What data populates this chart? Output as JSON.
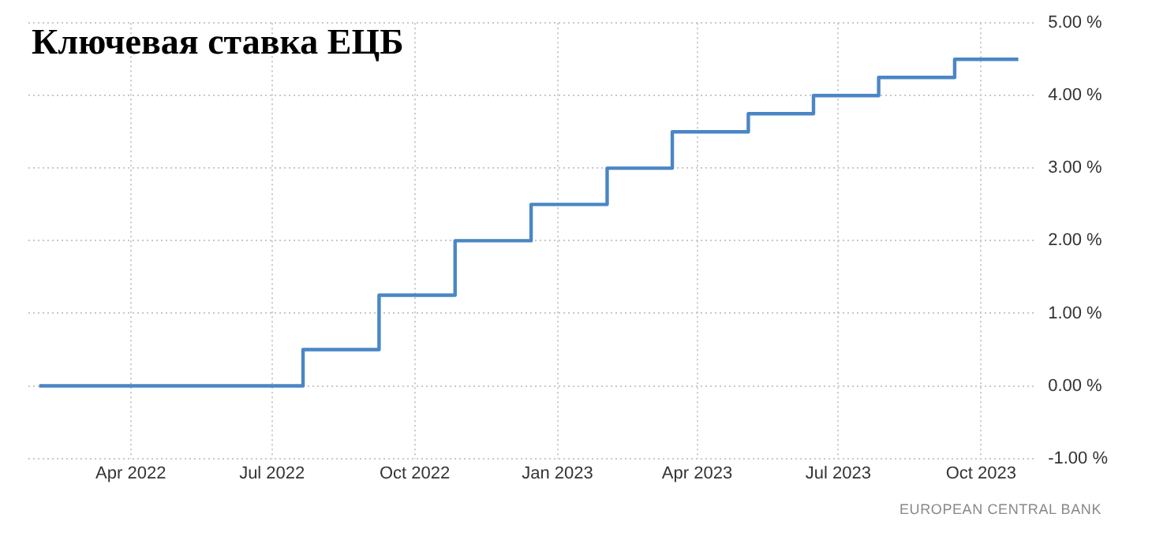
{
  "chart_data": {
    "type": "step",
    "title": "Ключевая ставка ЕЦБ",
    "annotations": [
      "EUROPEAN CENTRAL BANK"
    ],
    "x": [
      "2022-02-01",
      "2022-07-21",
      "2022-09-08",
      "2022-10-27",
      "2022-12-15",
      "2023-02-02",
      "2023-03-16",
      "2023-05-04",
      "2023-06-15",
      "2023-07-27",
      "2023-09-14",
      "2023-10-25"
    ],
    "series": [
      {
        "color": "#4a86c5",
        "values": [
          0,
          0.5,
          1.25,
          2,
          2.5,
          3,
          3.5,
          3.75,
          4,
          4.25,
          4.5,
          4.5
        ]
      }
    ],
    "xlim": [
      "2022-01-25",
      "2023-11-05"
    ],
    "xticks": [
      {
        "value": "2022-04-01",
        "label": "Apr 2022"
      },
      {
        "value": "2022-07-01",
        "label": "Jul 2022"
      },
      {
        "value": "2022-10-01",
        "label": "Oct 2022"
      },
      {
        "value": "2023-01-01",
        "label": "Jan 2023"
      },
      {
        "value": "2023-04-01",
        "label": "Apr 2023"
      },
      {
        "value": "2023-07-01",
        "label": "Jul 2023"
      },
      {
        "value": "2023-10-01",
        "label": "Oct 2023"
      }
    ],
    "ylim": [
      -1,
      5
    ],
    "yticks": [
      {
        "value": -1,
        "label": "-1.00 %"
      },
      {
        "value": 0,
        "label": "0.00 %"
      },
      {
        "value": 1,
        "label": "1.00 %"
      },
      {
        "value": 2,
        "label": "2.00 %"
      },
      {
        "value": 3,
        "label": "3.00 %"
      },
      {
        "value": 4,
        "label": "4.00 %"
      },
      {
        "value": 5,
        "label": "5.00 %"
      }
    ],
    "grid": true,
    "legend": false,
    "marker": "none",
    "line_style": "solid"
  }
}
